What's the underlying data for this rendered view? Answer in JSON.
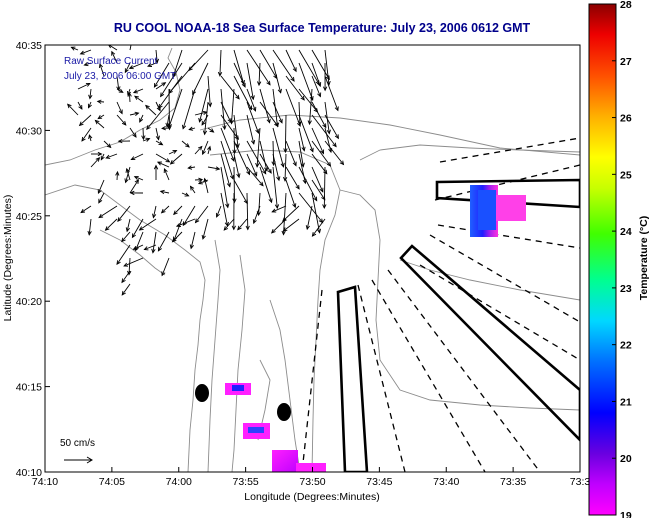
{
  "title": "RU COOL  NOAA-18  Sea Surface Temperature:  July 23, 2006 0612 GMT",
  "annotation": {
    "line1": "Raw Surface Current",
    "line2": "July 23, 2006 06:00 GMT"
  },
  "axes": {
    "xlabel": "Longitude (Degrees:Minutes)",
    "ylabel": "Latitude (Degrees:Minutes)",
    "xticks": [
      "74:10",
      "74:05",
      "74:00",
      "73:55",
      "73:50",
      "73:45",
      "73:40",
      "73:35",
      "73:3"
    ],
    "yticks": [
      "40:35",
      "40:30",
      "40:25",
      "40:20",
      "40:15",
      "40:10"
    ]
  },
  "scale_arrow": {
    "label": "50 cm/s"
  },
  "colorbar": {
    "label": "Temperature (°C)",
    "ticks": [
      "28",
      "27",
      "26",
      "25",
      "24",
      "23",
      "22",
      "21",
      "20",
      "19"
    ],
    "range": [
      19,
      28
    ]
  },
  "colors": {
    "title": "#00008b",
    "annotation": "#1a1aa6",
    "land_contour": "#8c8c8c",
    "arrows": "#000000"
  }
}
